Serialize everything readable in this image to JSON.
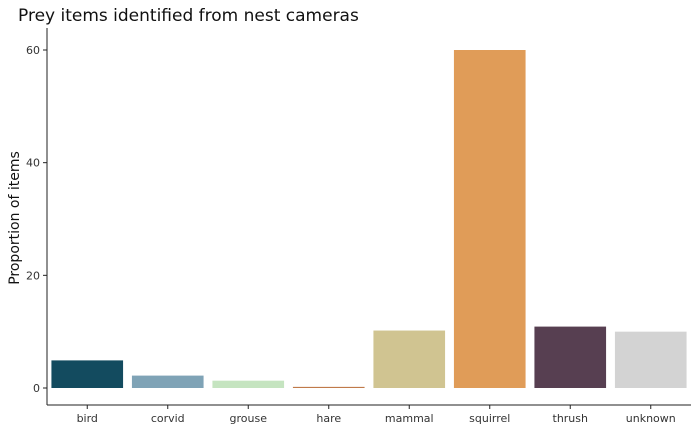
{
  "chart_data": {
    "type": "bar",
    "title": "Prey items identified from nest cameras",
    "xlabel": "",
    "ylabel": "Proportion of items",
    "categories": [
      "bird",
      "corvid",
      "grouse",
      "hare",
      "mammal",
      "squirrel",
      "thrush",
      "unknown"
    ],
    "values": [
      4.9,
      2.2,
      1.3,
      0.2,
      10.2,
      60.0,
      10.9,
      10.0
    ],
    "colors": [
      "#134b5f",
      "#7fa3b6",
      "#c5e4c0",
      "#c07a4a",
      "#d0c491",
      "#e09c58",
      "#573f51",
      "#d3d3d3"
    ],
    "ylim": [
      0,
      63
    ],
    "yticks": [
      0,
      20,
      40,
      60
    ],
    "grid": false,
    "legend": "none"
  }
}
